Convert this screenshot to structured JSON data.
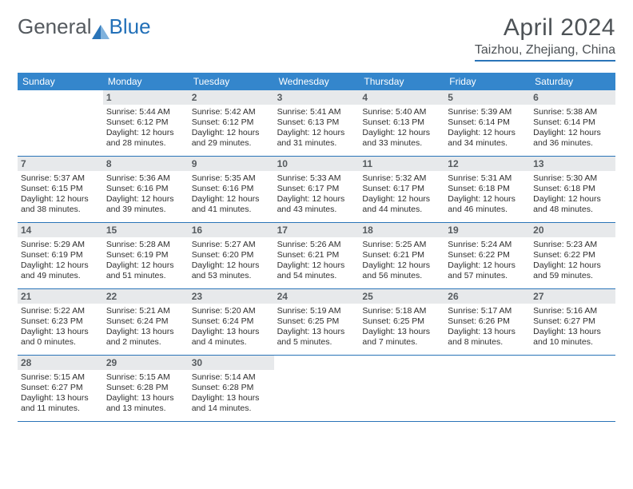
{
  "logo": {
    "part1": "General",
    "part2": "Blue",
    "color1": "#555a5f",
    "color2": "#2270b8"
  },
  "title": {
    "month": "April 2024",
    "location": "Taizhou, Zhejiang, China"
  },
  "colors": {
    "header_bg": "#3486cc",
    "header_text": "#ffffff",
    "rule": "#2a74b8",
    "daynum_bg": "#e7e9eb",
    "daynum_text": "#565b5f",
    "body_text": "#2e2e2e"
  },
  "dow": [
    "Sunday",
    "Monday",
    "Tuesday",
    "Wednesday",
    "Thursday",
    "Friday",
    "Saturday"
  ],
  "weeks": [
    [
      {
        "n": "",
        "lines": []
      },
      {
        "n": "1",
        "lines": [
          "Sunrise: 5:44 AM",
          "Sunset: 6:12 PM",
          "Daylight: 12 hours",
          "and 28 minutes."
        ]
      },
      {
        "n": "2",
        "lines": [
          "Sunrise: 5:42 AM",
          "Sunset: 6:12 PM",
          "Daylight: 12 hours",
          "and 29 minutes."
        ]
      },
      {
        "n": "3",
        "lines": [
          "Sunrise: 5:41 AM",
          "Sunset: 6:13 PM",
          "Daylight: 12 hours",
          "and 31 minutes."
        ]
      },
      {
        "n": "4",
        "lines": [
          "Sunrise: 5:40 AM",
          "Sunset: 6:13 PM",
          "Daylight: 12 hours",
          "and 33 minutes."
        ]
      },
      {
        "n": "5",
        "lines": [
          "Sunrise: 5:39 AM",
          "Sunset: 6:14 PM",
          "Daylight: 12 hours",
          "and 34 minutes."
        ]
      },
      {
        "n": "6",
        "lines": [
          "Sunrise: 5:38 AM",
          "Sunset: 6:14 PM",
          "Daylight: 12 hours",
          "and 36 minutes."
        ]
      }
    ],
    [
      {
        "n": "7",
        "lines": [
          "Sunrise: 5:37 AM",
          "Sunset: 6:15 PM",
          "Daylight: 12 hours",
          "and 38 minutes."
        ]
      },
      {
        "n": "8",
        "lines": [
          "Sunrise: 5:36 AM",
          "Sunset: 6:16 PM",
          "Daylight: 12 hours",
          "and 39 minutes."
        ]
      },
      {
        "n": "9",
        "lines": [
          "Sunrise: 5:35 AM",
          "Sunset: 6:16 PM",
          "Daylight: 12 hours",
          "and 41 minutes."
        ]
      },
      {
        "n": "10",
        "lines": [
          "Sunrise: 5:33 AM",
          "Sunset: 6:17 PM",
          "Daylight: 12 hours",
          "and 43 minutes."
        ]
      },
      {
        "n": "11",
        "lines": [
          "Sunrise: 5:32 AM",
          "Sunset: 6:17 PM",
          "Daylight: 12 hours",
          "and 44 minutes."
        ]
      },
      {
        "n": "12",
        "lines": [
          "Sunrise: 5:31 AM",
          "Sunset: 6:18 PM",
          "Daylight: 12 hours",
          "and 46 minutes."
        ]
      },
      {
        "n": "13",
        "lines": [
          "Sunrise: 5:30 AM",
          "Sunset: 6:18 PM",
          "Daylight: 12 hours",
          "and 48 minutes."
        ]
      }
    ],
    [
      {
        "n": "14",
        "lines": [
          "Sunrise: 5:29 AM",
          "Sunset: 6:19 PM",
          "Daylight: 12 hours",
          "and 49 minutes."
        ]
      },
      {
        "n": "15",
        "lines": [
          "Sunrise: 5:28 AM",
          "Sunset: 6:19 PM",
          "Daylight: 12 hours",
          "and 51 minutes."
        ]
      },
      {
        "n": "16",
        "lines": [
          "Sunrise: 5:27 AM",
          "Sunset: 6:20 PM",
          "Daylight: 12 hours",
          "and 53 minutes."
        ]
      },
      {
        "n": "17",
        "lines": [
          "Sunrise: 5:26 AM",
          "Sunset: 6:21 PM",
          "Daylight: 12 hours",
          "and 54 minutes."
        ]
      },
      {
        "n": "18",
        "lines": [
          "Sunrise: 5:25 AM",
          "Sunset: 6:21 PM",
          "Daylight: 12 hours",
          "and 56 minutes."
        ]
      },
      {
        "n": "19",
        "lines": [
          "Sunrise: 5:24 AM",
          "Sunset: 6:22 PM",
          "Daylight: 12 hours",
          "and 57 minutes."
        ]
      },
      {
        "n": "20",
        "lines": [
          "Sunrise: 5:23 AM",
          "Sunset: 6:22 PM",
          "Daylight: 12 hours",
          "and 59 minutes."
        ]
      }
    ],
    [
      {
        "n": "21",
        "lines": [
          "Sunrise: 5:22 AM",
          "Sunset: 6:23 PM",
          "Daylight: 13 hours",
          "and 0 minutes."
        ]
      },
      {
        "n": "22",
        "lines": [
          "Sunrise: 5:21 AM",
          "Sunset: 6:24 PM",
          "Daylight: 13 hours",
          "and 2 minutes."
        ]
      },
      {
        "n": "23",
        "lines": [
          "Sunrise: 5:20 AM",
          "Sunset: 6:24 PM",
          "Daylight: 13 hours",
          "and 4 minutes."
        ]
      },
      {
        "n": "24",
        "lines": [
          "Sunrise: 5:19 AM",
          "Sunset: 6:25 PM",
          "Daylight: 13 hours",
          "and 5 minutes."
        ]
      },
      {
        "n": "25",
        "lines": [
          "Sunrise: 5:18 AM",
          "Sunset: 6:25 PM",
          "Daylight: 13 hours",
          "and 7 minutes."
        ]
      },
      {
        "n": "26",
        "lines": [
          "Sunrise: 5:17 AM",
          "Sunset: 6:26 PM",
          "Daylight: 13 hours",
          "and 8 minutes."
        ]
      },
      {
        "n": "27",
        "lines": [
          "Sunrise: 5:16 AM",
          "Sunset: 6:27 PM",
          "Daylight: 13 hours",
          "and 10 minutes."
        ]
      }
    ],
    [
      {
        "n": "28",
        "lines": [
          "Sunrise: 5:15 AM",
          "Sunset: 6:27 PM",
          "Daylight: 13 hours",
          "and 11 minutes."
        ]
      },
      {
        "n": "29",
        "lines": [
          "Sunrise: 5:15 AM",
          "Sunset: 6:28 PM",
          "Daylight: 13 hours",
          "and 13 minutes."
        ]
      },
      {
        "n": "30",
        "lines": [
          "Sunrise: 5:14 AM",
          "Sunset: 6:28 PM",
          "Daylight: 13 hours",
          "and 14 minutes."
        ]
      },
      {
        "n": "",
        "lines": []
      },
      {
        "n": "",
        "lines": []
      },
      {
        "n": "",
        "lines": []
      },
      {
        "n": "",
        "lines": []
      }
    ]
  ]
}
